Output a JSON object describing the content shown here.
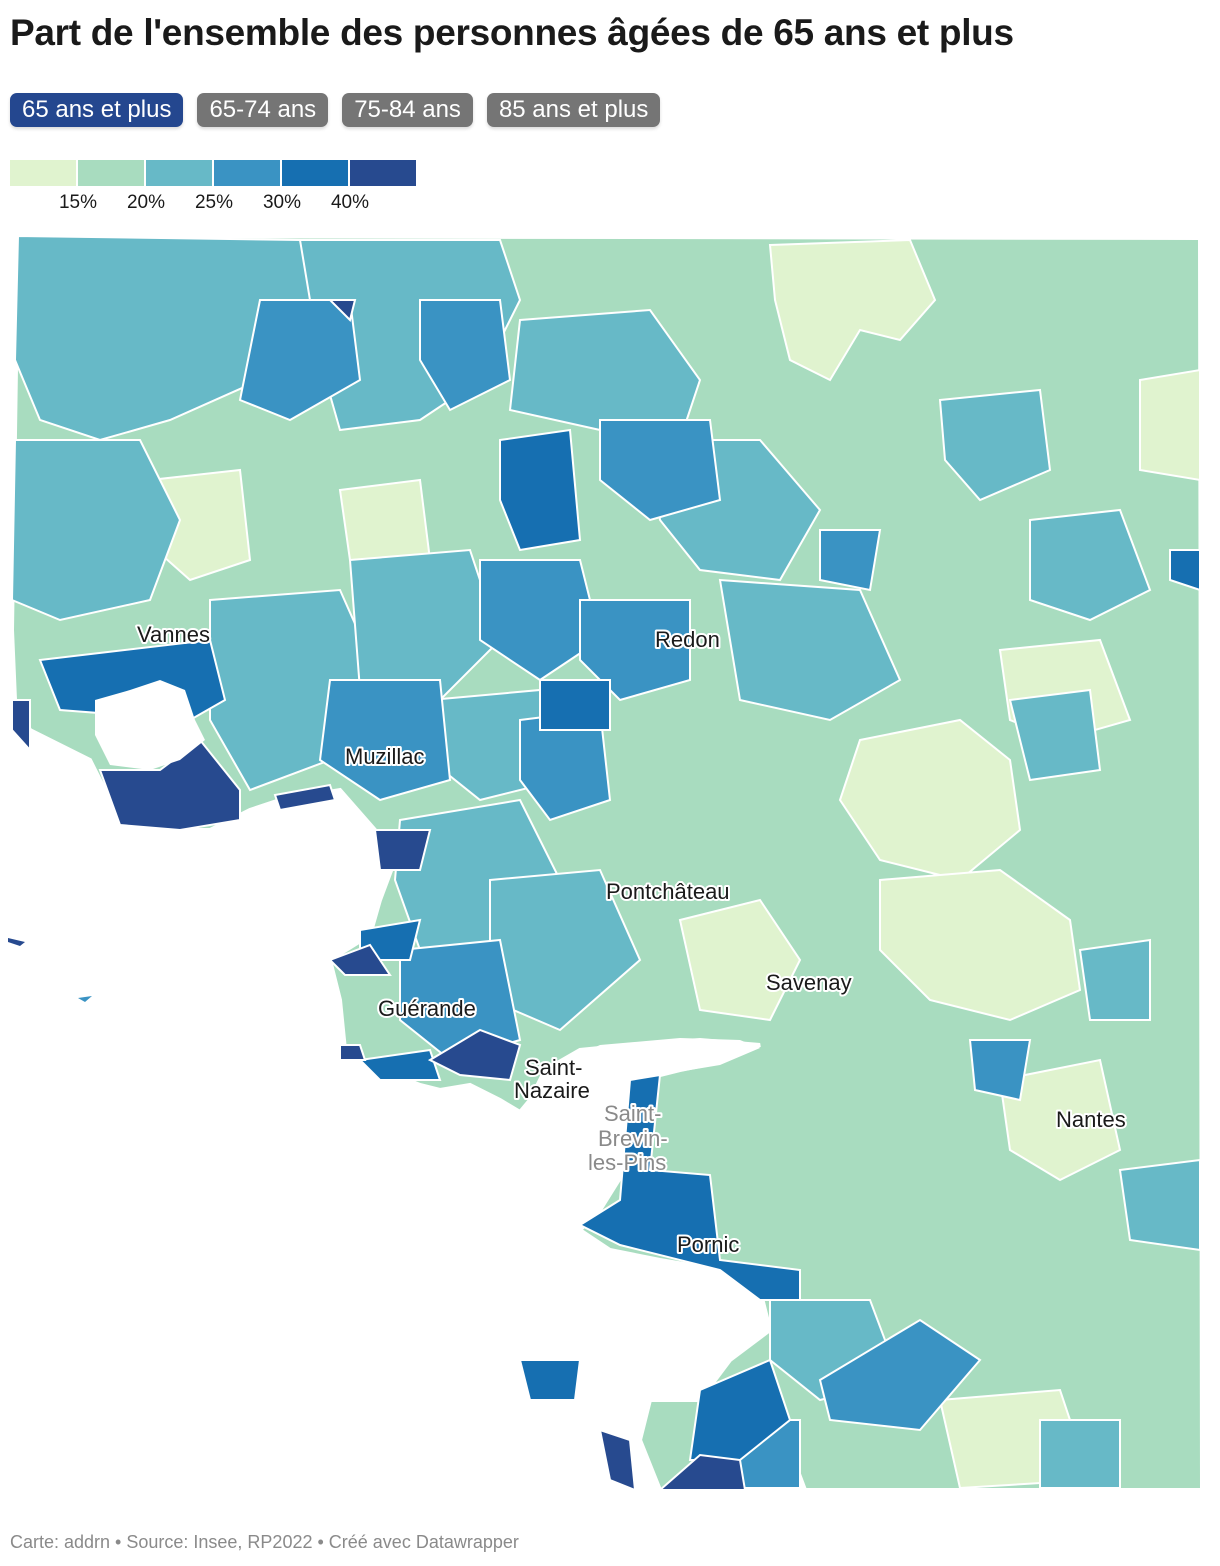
{
  "title": "Part de l'ensemble des personnes âgées de 65 ans et plus",
  "tabs": [
    {
      "label": "65 ans et plus",
      "active": true
    },
    {
      "label": "65-74 ans",
      "active": false
    },
    {
      "label": "75-84 ans",
      "active": false
    },
    {
      "label": "85 ans et plus",
      "active": false
    }
  ],
  "legend": {
    "colors": [
      "#e0f3cf",
      "#a8dcbf",
      "#67b9c7",
      "#3a93c3",
      "#166fb1",
      "#274a8f"
    ],
    "labels": [
      "15%",
      "20%",
      "25%",
      "30%",
      "40%"
    ]
  },
  "cities": {
    "vannes": "Vannes",
    "redon": "Redon",
    "muzillac": "Muzillac",
    "pontchateau": "Pontchâteau",
    "savenay": "Savenay",
    "guerande": "Guérande",
    "saint_nazaire_1": "Saint-",
    "saint_nazaire_2": "Nazaire",
    "saint_brevin_1": "Saint-",
    "saint_brevin_2": "Brevin-",
    "saint_brevin_3": "les-Pins",
    "pornic": "Pornic",
    "nantes": "Nantes"
  },
  "footer": "Carte: addrn • Source: Insee, RP2022 • Créé avec Datawrapper"
}
